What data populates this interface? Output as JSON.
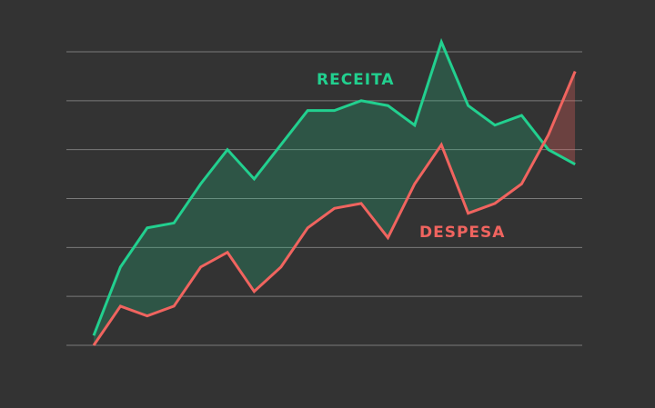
{
  "chart_data": {
    "type": "line",
    "categories": [
      null,
      null,
      null,
      null,
      null,
      null,
      null,
      null,
      null,
      null,
      null,
      null,
      null,
      null,
      null,
      null,
      null,
      null,
      null
    ],
    "series": [
      {
        "name": "RECEITA",
        "color": "#22d08f",
        "values": [
          0.2,
          1.6,
          2.4,
          2.5,
          3.3,
          4.0,
          3.4,
          4.1,
          4.8,
          4.8,
          5.0,
          4.9,
          4.5,
          6.2,
          4.9,
          4.5,
          4.7,
          4.0,
          3.7
        ]
      },
      {
        "name": "DESPESA",
        "color": "#f0645f",
        "values": [
          0.0,
          0.8,
          0.6,
          0.8,
          1.6,
          1.9,
          1.1,
          1.6,
          2.4,
          2.8,
          2.9,
          2.2,
          3.3,
          4.1,
          2.7,
          2.9,
          3.3,
          4.3,
          5.6
        ]
      }
    ],
    "ylim": [
      0,
      6
    ],
    "yticks": [
      0,
      1,
      2,
      3,
      4,
      5,
      6
    ],
    "grid": true
  }
}
